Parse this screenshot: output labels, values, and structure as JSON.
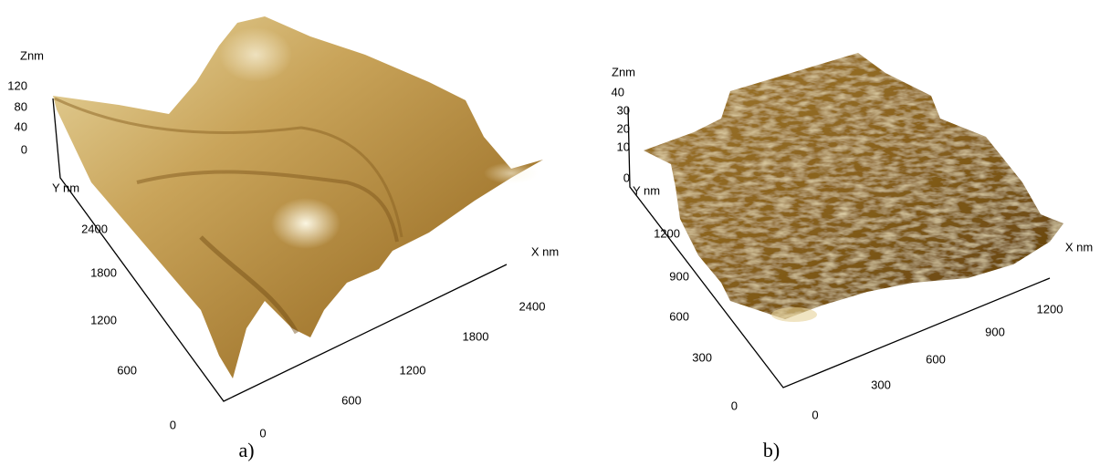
{
  "panels": [
    {
      "z_label": "Znm",
      "z_ticks": [
        120,
        80,
        40,
        0
      ],
      "y_label": "Y nm",
      "y_ticks": [
        2400,
        1800,
        1200,
        600,
        0
      ],
      "x_label": "X nm",
      "x_ticks": [
        0,
        600,
        1200,
        1800,
        2400
      ],
      "caption": "a)"
    },
    {
      "z_label": "Znm",
      "z_ticks": [
        40,
        30,
        20,
        10,
        0
      ],
      "y_label": "Y nm",
      "y_ticks": [
        1200,
        900,
        600,
        300,
        0
      ],
      "x_label": "X nm",
      "x_ticks": [
        0,
        300,
        600,
        900,
        1200
      ],
      "caption": "b)"
    }
  ]
}
